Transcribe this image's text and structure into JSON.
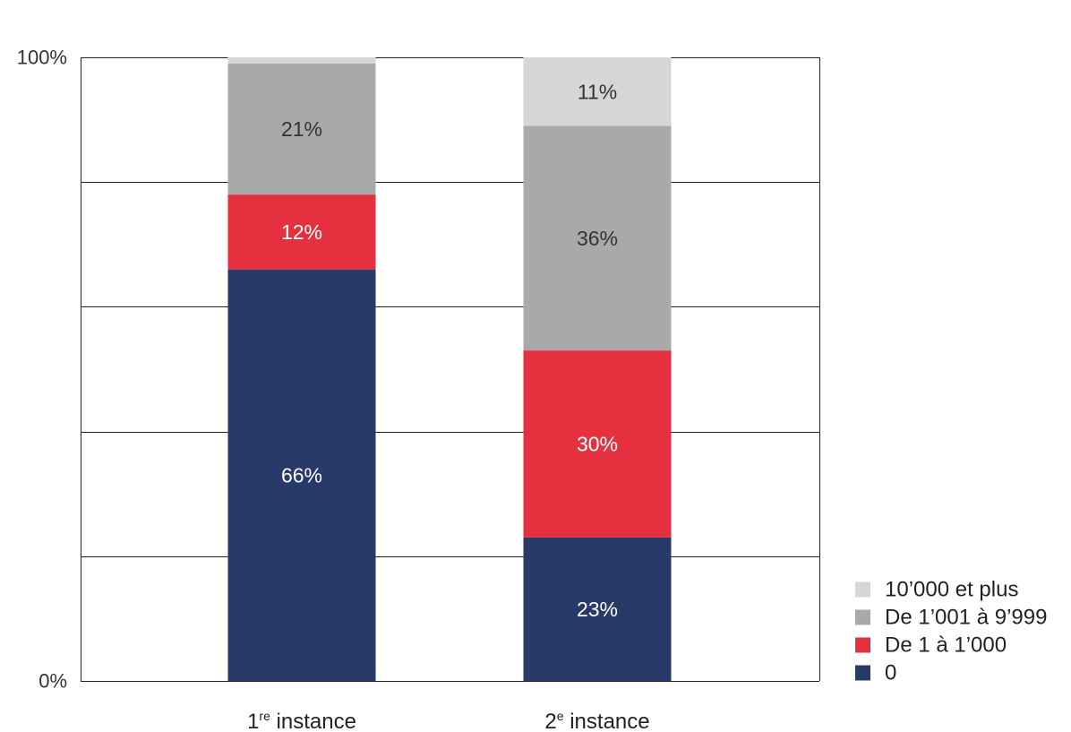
{
  "chart_data": {
    "type": "bar",
    "stacked": true,
    "categories": [
      {
        "main": "1",
        "sup": "re",
        "rest": " instance"
      },
      {
        "main": "2",
        "sup": "e",
        "rest": " instance"
      }
    ],
    "series": [
      {
        "name": "0",
        "color": "#283a68",
        "label_color": "#ffffff",
        "values": [
          66,
          23
        ],
        "labels": [
          "66%",
          "23%"
        ]
      },
      {
        "name": "De 1 à 1’000",
        "color": "#e5313f",
        "label_color": "#ffffff",
        "values": [
          12,
          30
        ],
        "labels": [
          "12%",
          "30%"
        ]
      },
      {
        "name": "De 1’001 à 9’999",
        "color": "#a9a9a8",
        "label_color": "#333333",
        "values": [
          21,
          36
        ],
        "labels": [
          "21%",
          "36%"
        ]
      },
      {
        "name": "10’000 et plus",
        "color": "#d6d6d5",
        "label_color": "#333333",
        "values": [
          1,
          11
        ],
        "labels": [
          "",
          "11%"
        ]
      }
    ],
    "ylim": [
      0,
      100
    ],
    "y_ticks": [
      {
        "value": 0,
        "label": "0%"
      },
      {
        "value": 100,
        "label": "100%"
      }
    ],
    "gridlines": [
      20,
      40,
      60,
      80,
      100
    ],
    "grid": true,
    "legend_position": "bottom-right"
  }
}
